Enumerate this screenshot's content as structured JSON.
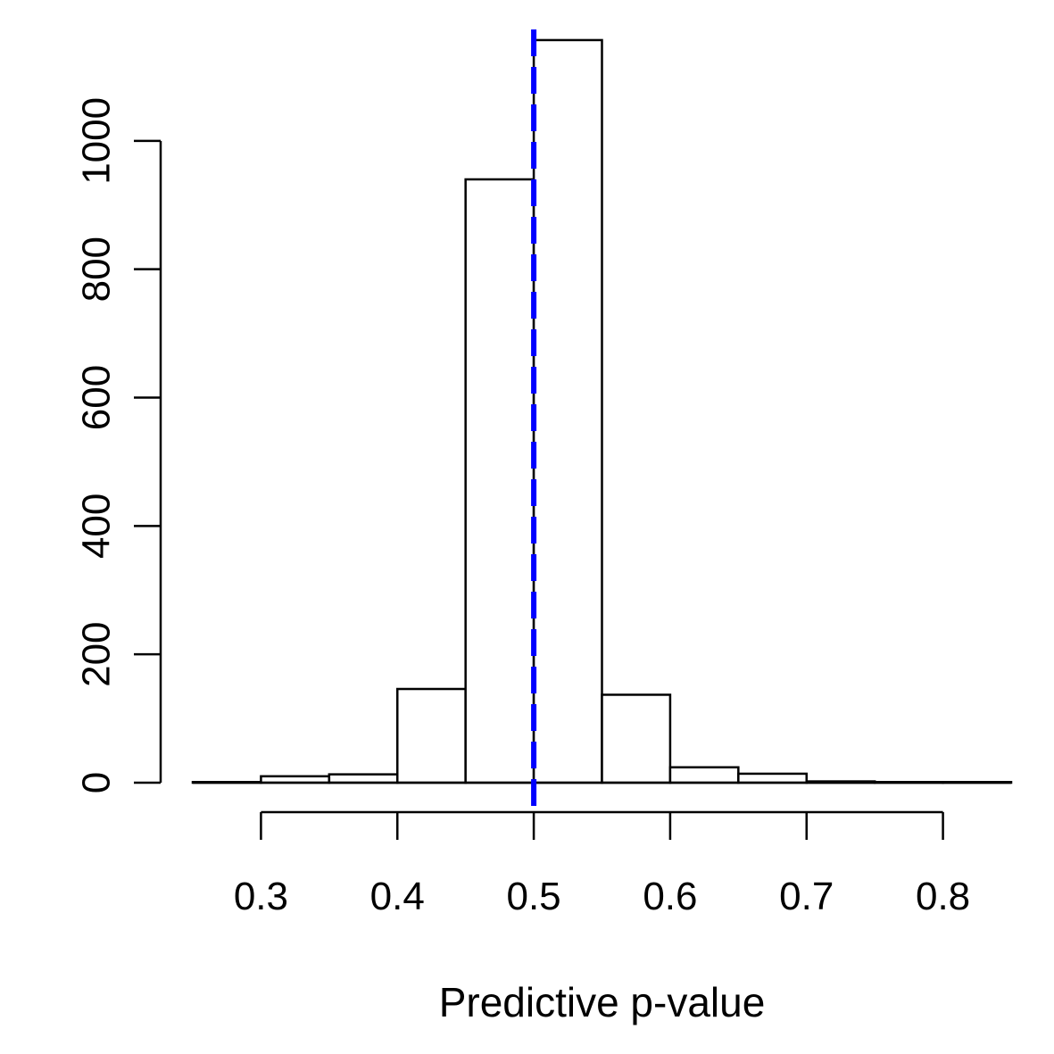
{
  "chart_data": {
    "type": "bar",
    "title": "",
    "xlabel": "Predictive p-value",
    "ylabel": "",
    "bin_edges": [
      0.25,
      0.3,
      0.35,
      0.4,
      0.45,
      0.5,
      0.55,
      0.6,
      0.65,
      0.7,
      0.75,
      0.8,
      0.85
    ],
    "values": [
      1,
      10,
      13,
      146,
      940,
      1157,
      137,
      24,
      14,
      2,
      1,
      1
    ],
    "xlim": [
      0.25,
      0.85
    ],
    "ylim": [
      0,
      1200
    ],
    "x_ticks": [
      "0.3",
      "0.4",
      "0.5",
      "0.6",
      "0.7",
      "0.8"
    ],
    "y_ticks": [
      "0",
      "200",
      "400",
      "600",
      "800",
      "1000"
    ],
    "reference_line": {
      "x": 0.5,
      "style": "dashed",
      "color": "#0000ff"
    },
    "grid": false,
    "legend": "none"
  }
}
